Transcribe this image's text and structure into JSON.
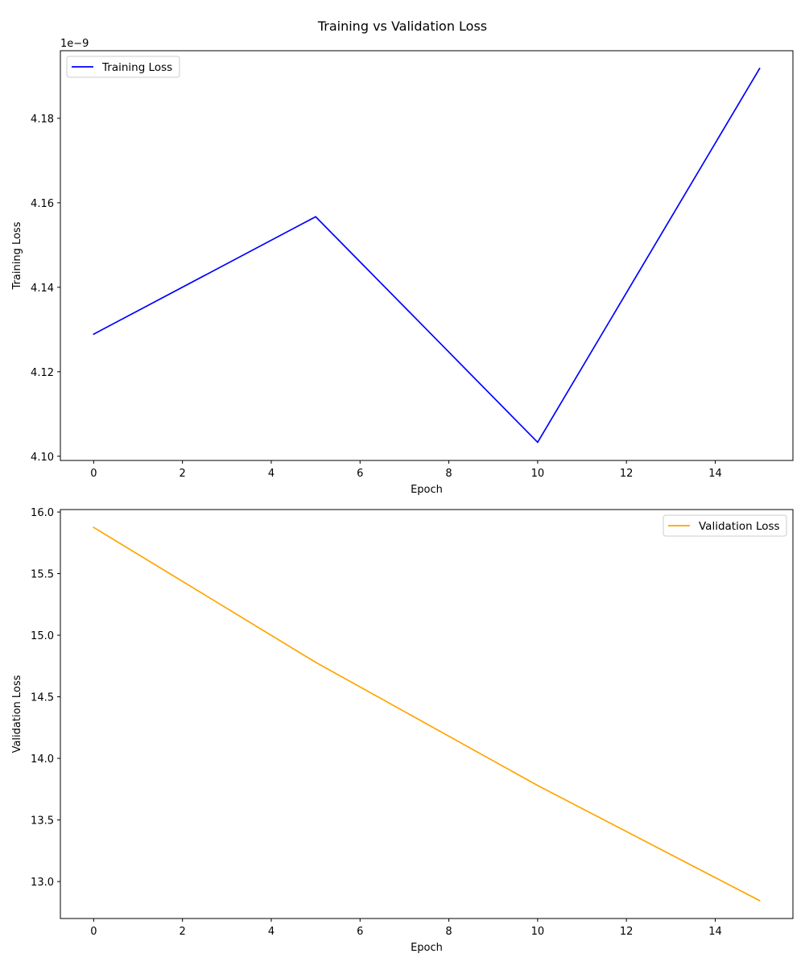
{
  "figure": {
    "title": "Training vs Validation Loss"
  },
  "chart_data": [
    {
      "type": "line",
      "xlabel": "Epoch",
      "ylabel": "Training Loss",
      "offset_text": "1e−9",
      "x": [
        0,
        5,
        10,
        15
      ],
      "xlim": [
        -0.75,
        15.75
      ],
      "xticks": [
        0,
        2,
        4,
        6,
        8,
        10,
        12,
        14
      ],
      "ylim": [
        4.099,
        4.196
      ],
      "yticks": [
        4.1,
        4.12,
        4.14,
        4.16,
        4.18
      ],
      "ytick_labels": [
        "4.10",
        "4.12",
        "4.14",
        "4.16",
        "4.18"
      ],
      "legend_position": "upper left",
      "grid": false,
      "series": [
        {
          "name": "Training Loss",
          "color": "#0000ff",
          "values": [
            4.1289,
            4.1567,
            4.1033,
            4.1918
          ]
        }
      ]
    },
    {
      "type": "line",
      "xlabel": "Epoch",
      "ylabel": "Validation Loss",
      "x": [
        0,
        5,
        10,
        15
      ],
      "xlim": [
        -0.75,
        15.75
      ],
      "xticks": [
        0,
        2,
        4,
        6,
        8,
        10,
        12,
        14
      ],
      "ylim": [
        12.7,
        16.02
      ],
      "yticks": [
        13.0,
        13.5,
        14.0,
        14.5,
        15.0,
        15.5,
        16.0
      ],
      "ytick_labels": [
        "13.0",
        "13.5",
        "14.0",
        "14.5",
        "15.0",
        "15.5",
        "16.0"
      ],
      "legend_position": "upper right",
      "grid": false,
      "series": [
        {
          "name": "Validation Loss",
          "color": "#ffa500",
          "values": [
            15.875,
            14.78,
            13.78,
            12.845
          ]
        }
      ]
    }
  ]
}
